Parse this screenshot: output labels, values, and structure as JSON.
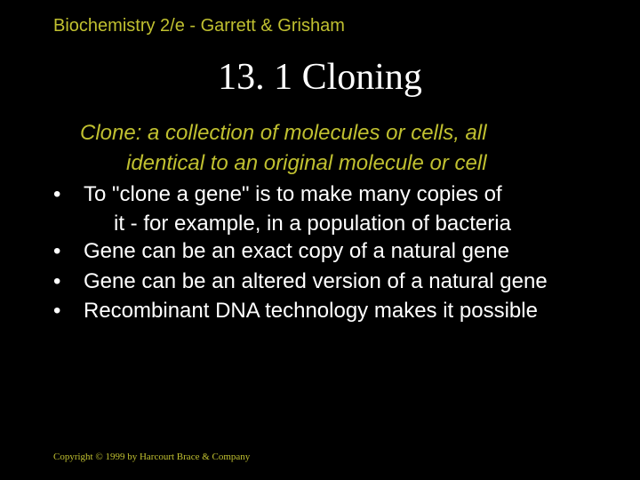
{
  "colors": {
    "background": "#000000",
    "accent": "#c0c030",
    "text": "#ffffff"
  },
  "typography": {
    "header_fontsize": 20,
    "title_fontsize": 42,
    "body_fontsize": 24,
    "copyright_fontsize": 11
  },
  "header": "Biochemistry 2/e - Garrett & Grisham",
  "title": "13. 1 Cloning",
  "definition": {
    "line1": "Clone: a collection of molecules or cells, all",
    "line2": "identical to an original molecule or cell"
  },
  "bullets": [
    {
      "text": "To \"clone a gene\" is to make many copies of",
      "cont": "it - for example, in a population of bacteria"
    },
    {
      "text": "Gene can be an exact copy of a natural gene",
      "cont": ""
    },
    {
      "text": "Gene can be an altered version of a natural gene",
      "cont": ""
    },
    {
      "text": "Recombinant DNA technology makes it possible",
      "cont": ""
    }
  ],
  "copyright": "Copyright © 1999 by Harcourt Brace & Company"
}
